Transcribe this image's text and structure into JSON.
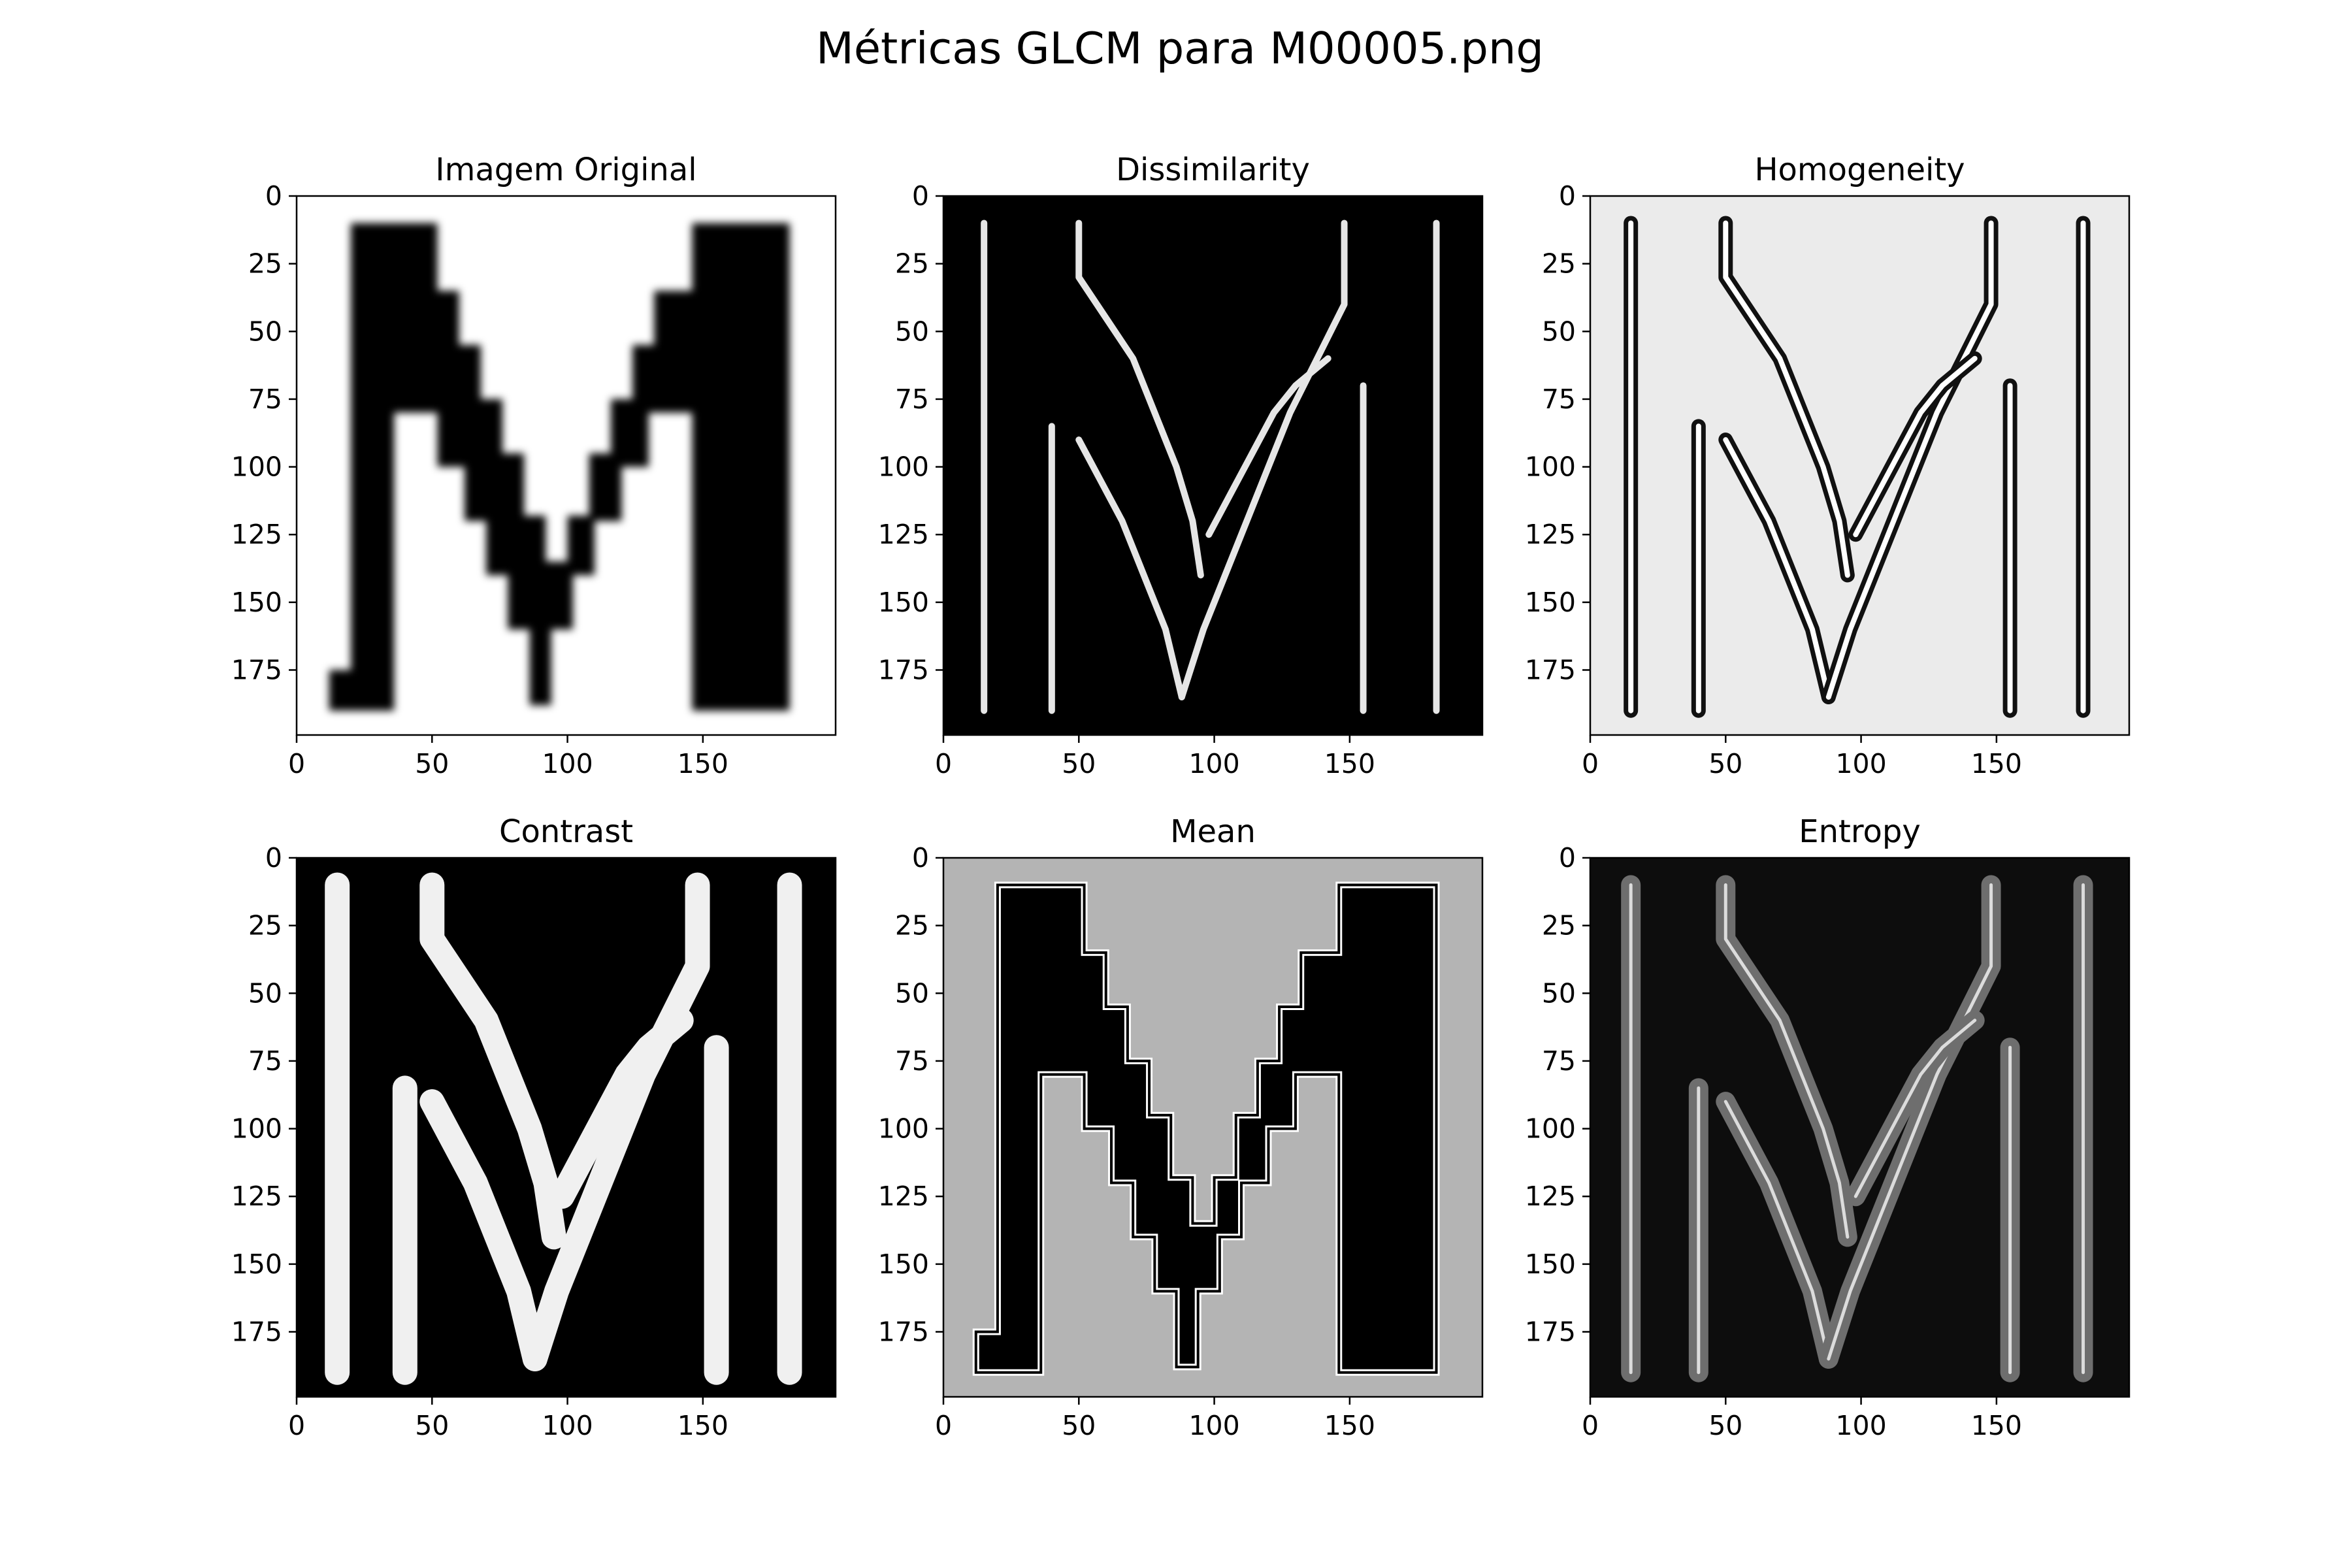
{
  "figure_title": "Métricas GLCM para M00005.png",
  "chart_data": [
    {
      "type": "heatmap",
      "title": "Imagem Original",
      "colormap": "gray",
      "background": "#ffffff",
      "stroke_color": "#000000",
      "xticks": [
        "0",
        "50",
        "100",
        "150"
      ],
      "yticks": [
        "0",
        "25",
        "50",
        "75",
        "100",
        "125",
        "150",
        "175"
      ],
      "xlim": [
        0,
        199
      ],
      "ylim": [
        199,
        0
      ]
    },
    {
      "type": "heatmap",
      "title": "Dissimilarity",
      "colormap": "gray",
      "background": "#000000",
      "stroke_color": "#e6e6e6",
      "xticks": [
        "0",
        "50",
        "100",
        "150"
      ],
      "yticks": [
        "0",
        "25",
        "50",
        "75",
        "100",
        "125",
        "150",
        "175"
      ],
      "xlim": [
        0,
        199
      ],
      "ylim": [
        199,
        0
      ]
    },
    {
      "type": "heatmap",
      "title": "Homogeneity",
      "colormap": "gray",
      "background": "#ebebeb",
      "stroke_color": "#111111",
      "xticks": [
        "0",
        "50",
        "100",
        "150"
      ],
      "yticks": [
        "0",
        "25",
        "50",
        "75",
        "100",
        "125",
        "150",
        "175"
      ],
      "xlim": [
        0,
        199
      ],
      "ylim": [
        199,
        0
      ]
    },
    {
      "type": "heatmap",
      "title": "Contrast",
      "colormap": "gray",
      "background": "#000000",
      "stroke_color": "#f0f0f0",
      "xticks": [
        "0",
        "50",
        "100",
        "150"
      ],
      "yticks": [
        "0",
        "25",
        "50",
        "75",
        "100",
        "125",
        "150",
        "175"
      ],
      "xlim": [
        0,
        199
      ],
      "ylim": [
        199,
        0
      ]
    },
    {
      "type": "heatmap",
      "title": "Mean",
      "colormap": "gray",
      "background": "#b4b4b4",
      "stroke_color": "#000000",
      "xticks": [
        "0",
        "50",
        "100",
        "150"
      ],
      "yticks": [
        "0",
        "25",
        "50",
        "75",
        "100",
        "125",
        "150",
        "175"
      ],
      "xlim": [
        0,
        199
      ],
      "ylim": [
        199,
        0
      ]
    },
    {
      "type": "heatmap",
      "title": "Entropy",
      "colormap": "gray",
      "background": "#0d0d0d",
      "stroke_color": "#6e6e6e",
      "xticks": [
        "0",
        "50",
        "100",
        "150"
      ],
      "yticks": [
        "0",
        "25",
        "50",
        "75",
        "100",
        "125",
        "150",
        "175"
      ],
      "xlim": [
        0,
        199
      ],
      "ylim": [
        199,
        0
      ]
    }
  ]
}
